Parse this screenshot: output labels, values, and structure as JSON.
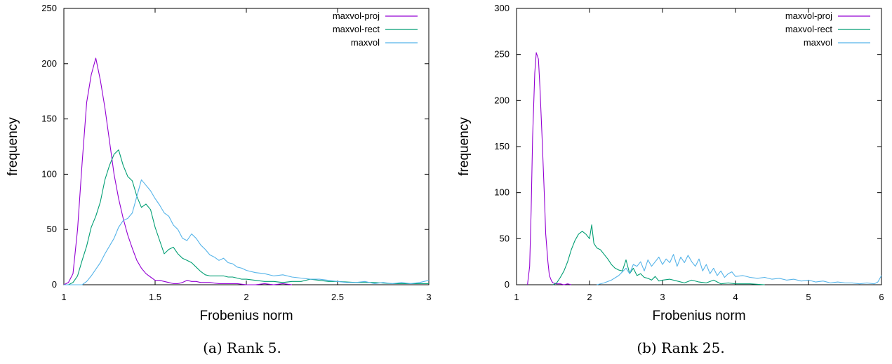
{
  "colors": {
    "maxvol-proj": "#9400d3",
    "maxvol-rect": "#009e73",
    "maxvol": "#56b4e9"
  },
  "chart_data": [
    {
      "type": "line",
      "caption": "(a) Rank 5.",
      "xlabel": "Frobenius norm",
      "ylabel": "frequency",
      "xlim": [
        1,
        3
      ],
      "ylim": [
        0,
        250
      ],
      "xticks": [
        "1",
        "1.5",
        "2",
        "2.5",
        "3"
      ],
      "yticks": [
        "0",
        "50",
        "100",
        "150",
        "200",
        "250"
      ],
      "xtick_values": [
        1,
        1.5,
        2,
        2.5,
        3
      ],
      "ytick_values": [
        0,
        50,
        100,
        150,
        200,
        250
      ],
      "grid": false,
      "legend_position": "top-right",
      "series": [
        {
          "name": "maxvol-proj",
          "x": [
            1.0,
            1.025,
            1.05,
            1.075,
            1.1,
            1.125,
            1.15,
            1.175,
            1.2,
            1.225,
            1.25,
            1.275,
            1.3,
            1.325,
            1.35,
            1.375,
            1.4,
            1.425,
            1.45,
            1.475,
            1.5,
            1.525,
            1.55,
            1.575,
            1.6,
            1.625,
            1.65,
            1.675,
            1.7,
            1.725,
            1.75,
            1.8,
            1.85,
            1.9,
            1.95,
            2.0,
            2.05,
            2.1,
            2.15,
            2.2,
            2.25
          ],
          "y": [
            0,
            2,
            10,
            50,
            110,
            165,
            190,
            205,
            185,
            160,
            130,
            100,
            78,
            60,
            45,
            33,
            22,
            15,
            10,
            7,
            4,
            4,
            3,
            2,
            1,
            1,
            2,
            4,
            3,
            3,
            2,
            2,
            1,
            1,
            1,
            0,
            0,
            1,
            0,
            1,
            0
          ]
        },
        {
          "name": "maxvol-rect",
          "x": [
            1.0,
            1.025,
            1.05,
            1.075,
            1.1,
            1.125,
            1.15,
            1.175,
            1.2,
            1.225,
            1.25,
            1.275,
            1.3,
            1.325,
            1.35,
            1.375,
            1.4,
            1.425,
            1.45,
            1.475,
            1.5,
            1.525,
            1.55,
            1.575,
            1.6,
            1.625,
            1.65,
            1.675,
            1.7,
            1.725,
            1.75,
            1.775,
            1.8,
            1.825,
            1.85,
            1.875,
            1.9,
            1.925,
            1.95,
            1.975,
            2.0,
            2.05,
            2.1,
            2.15,
            2.2,
            2.25,
            2.3,
            2.35,
            2.4,
            2.45,
            2.5,
            2.6,
            2.7,
            2.8,
            2.9,
            3.0
          ],
          "y": [
            0,
            0,
            2,
            8,
            22,
            35,
            52,
            62,
            75,
            95,
            108,
            118,
            122,
            108,
            98,
            94,
            80,
            70,
            73,
            68,
            52,
            40,
            28,
            32,
            34,
            28,
            24,
            22,
            20,
            16,
            12,
            9,
            8,
            8,
            8,
            8,
            7,
            7,
            6,
            5,
            5,
            4,
            3,
            3,
            2,
            3,
            3,
            5,
            4,
            3,
            3,
            2,
            2,
            1,
            1,
            1
          ]
        },
        {
          "name": "maxvol",
          "x": [
            1.0,
            1.05,
            1.1,
            1.125,
            1.15,
            1.175,
            1.2,
            1.225,
            1.25,
            1.275,
            1.3,
            1.325,
            1.35,
            1.375,
            1.4,
            1.425,
            1.45,
            1.475,
            1.5,
            1.525,
            1.55,
            1.575,
            1.6,
            1.625,
            1.65,
            1.675,
            1.7,
            1.725,
            1.75,
            1.775,
            1.8,
            1.825,
            1.85,
            1.875,
            1.9,
            1.925,
            1.95,
            1.975,
            2.0,
            2.05,
            2.1,
            2.15,
            2.2,
            2.25,
            2.3,
            2.35,
            2.4,
            2.45,
            2.5,
            2.55,
            2.6,
            2.65,
            2.7,
            2.75,
            2.8,
            2.85,
            2.9,
            2.95,
            3.0
          ],
          "y": [
            0,
            0,
            0,
            3,
            8,
            14,
            20,
            28,
            35,
            42,
            52,
            58,
            60,
            65,
            80,
            95,
            90,
            85,
            78,
            72,
            65,
            62,
            54,
            50,
            42,
            40,
            46,
            42,
            36,
            32,
            27,
            25,
            22,
            24,
            20,
            19,
            16,
            15,
            13,
            11,
            10,
            8,
            9,
            7,
            6,
            5,
            5,
            4,
            3,
            2,
            2,
            3,
            1,
            2,
            1,
            2,
            1,
            2,
            4
          ]
        }
      ]
    },
    {
      "type": "line",
      "caption": "(b) Rank 25.",
      "xlabel": "Frobenius norm",
      "ylabel": "frequency",
      "xlim": [
        1,
        6
      ],
      "ylim": [
        0,
        300
      ],
      "xticks": [
        "1",
        "2",
        "3",
        "4",
        "5",
        "6"
      ],
      "yticks": [
        "0",
        "50",
        "100",
        "150",
        "200",
        "250",
        "300"
      ],
      "xtick_values": [
        1,
        2,
        3,
        4,
        5,
        6
      ],
      "ytick_values": [
        0,
        50,
        100,
        150,
        200,
        250,
        300
      ],
      "grid": false,
      "legend_position": "top-right",
      "series": [
        {
          "name": "maxvol-proj",
          "x": [
            1.15,
            1.18,
            1.2,
            1.22,
            1.25,
            1.27,
            1.3,
            1.32,
            1.35,
            1.38,
            1.4,
            1.43,
            1.45,
            1.48,
            1.5,
            1.55,
            1.6,
            1.65,
            1.7,
            1.75
          ],
          "y": [
            0,
            20,
            80,
            160,
            230,
            252,
            245,
            215,
            160,
            100,
            55,
            25,
            10,
            4,
            2,
            1,
            1,
            0,
            1,
            0
          ]
        },
        {
          "name": "maxvol-rect",
          "x": [
            1.5,
            1.55,
            1.6,
            1.65,
            1.7,
            1.75,
            1.8,
            1.85,
            1.9,
            1.95,
            2.0,
            2.03,
            2.06,
            2.1,
            2.15,
            2.2,
            2.25,
            2.3,
            2.35,
            2.4,
            2.45,
            2.5,
            2.55,
            2.6,
            2.65,
            2.7,
            2.75,
            2.8,
            2.85,
            2.9,
            2.95,
            3.0,
            3.1,
            3.2,
            3.3,
            3.4,
            3.5,
            3.6,
            3.7,
            3.8,
            3.9,
            4.0,
            4.2,
            4.4
          ],
          "y": [
            0,
            2,
            8,
            15,
            25,
            38,
            48,
            55,
            58,
            55,
            50,
            65,
            45,
            40,
            38,
            33,
            28,
            22,
            18,
            16,
            15,
            27,
            12,
            18,
            10,
            12,
            8,
            7,
            5,
            9,
            4,
            5,
            6,
            4,
            2,
            5,
            3,
            2,
            5,
            1,
            2,
            1,
            1,
            0
          ]
        },
        {
          "name": "maxvol",
          "x": [
            2.1,
            2.2,
            2.3,
            2.4,
            2.45,
            2.5,
            2.55,
            2.6,
            2.65,
            2.7,
            2.75,
            2.8,
            2.85,
            2.9,
            2.95,
            3.0,
            3.05,
            3.1,
            3.15,
            3.2,
            3.25,
            3.3,
            3.35,
            3.4,
            3.45,
            3.5,
            3.55,
            3.6,
            3.65,
            3.7,
            3.75,
            3.8,
            3.85,
            3.9,
            3.95,
            4.0,
            4.1,
            4.2,
            4.3,
            4.4,
            4.5,
            4.6,
            4.7,
            4.8,
            4.9,
            5.0,
            5.1,
            5.2,
            5.3,
            5.4,
            5.5,
            5.6,
            5.7,
            5.8,
            5.9,
            5.95,
            6.0
          ],
          "y": [
            0,
            2,
            5,
            10,
            14,
            18,
            12,
            22,
            20,
            25,
            15,
            27,
            20,
            25,
            30,
            22,
            28,
            24,
            33,
            20,
            30,
            24,
            32,
            25,
            20,
            28,
            15,
            22,
            12,
            18,
            10,
            15,
            8,
            12,
            14,
            9,
            10,
            8,
            7,
            8,
            6,
            7,
            5,
            6,
            4,
            5,
            3,
            4,
            2,
            3,
            2,
            2,
            1,
            2,
            1,
            3,
            10
          ]
        }
      ]
    }
  ]
}
